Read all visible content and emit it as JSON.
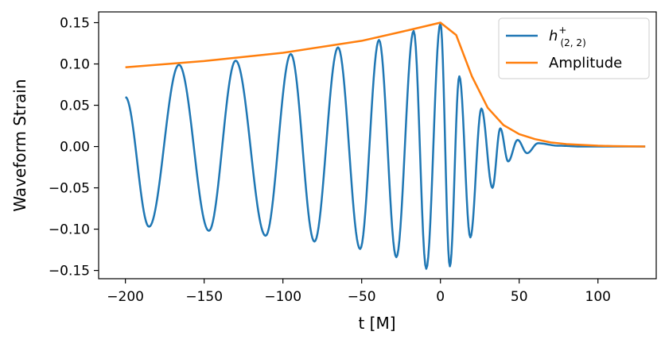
{
  "chart_data": {
    "type": "line",
    "xlabel": "t [M]",
    "ylabel": "Waveform Strain",
    "xlim": [
      -217,
      137
    ],
    "ylim": [
      -0.16,
      0.163
    ],
    "xticks": [
      -200,
      -150,
      -100,
      -50,
      0,
      50,
      100
    ],
    "xtick_labels": [
      "−200",
      "−150",
      "−100",
      "−50",
      "0",
      "50",
      "100"
    ],
    "yticks": [
      -0.15,
      -0.1,
      -0.05,
      0.0,
      0.05,
      0.1,
      0.15
    ],
    "ytick_labels": [
      "−0.15",
      "−0.10",
      "−0.05",
      "0.00",
      "0.05",
      "0.10",
      "0.15"
    ],
    "grid": false,
    "legend_position": "top-right",
    "series": [
      {
        "name": "h(2,2)+",
        "legend_main": "h",
        "legend_sup": "+",
        "legend_sub": "(2, 2)",
        "color": "#1f77b4",
        "description_points": {
          "x": [
            -200,
            -185,
            -166,
            -147,
            -130,
            -111,
            -95,
            -80,
            -65,
            -51,
            -39,
            -28,
            -17,
            -9,
            0,
            6,
            12,
            19,
            26,
            33,
            38,
            43,
            49,
            55,
            62,
            75,
            90,
            110,
            130
          ],
          "y": [
            0.06,
            -0.097,
            0.099,
            -0.102,
            0.104,
            -0.108,
            0.112,
            -0.115,
            0.12,
            -0.124,
            0.129,
            -0.134,
            0.14,
            -0.148,
            0.149,
            -0.145,
            0.085,
            -0.11,
            0.046,
            -0.05,
            0.022,
            -0.018,
            0.008,
            -0.008,
            0.004,
            0.001,
            0.0,
            0.0,
            0.0
          ]
        }
      },
      {
        "name": "Amplitude",
        "color": "#ff7f0e",
        "x": [
          -200,
          -150,
          -100,
          -50,
          -20,
          0,
          10,
          20,
          30,
          40,
          50,
          60,
          70,
          80,
          90,
          100,
          110,
          130
        ],
        "y": [
          0.096,
          0.1035,
          0.1135,
          0.128,
          0.141,
          0.15,
          0.135,
          0.085,
          0.047,
          0.026,
          0.015,
          0.009,
          0.005,
          0.003,
          0.002,
          0.001,
          0.0005,
          0.0
        ]
      }
    ]
  }
}
